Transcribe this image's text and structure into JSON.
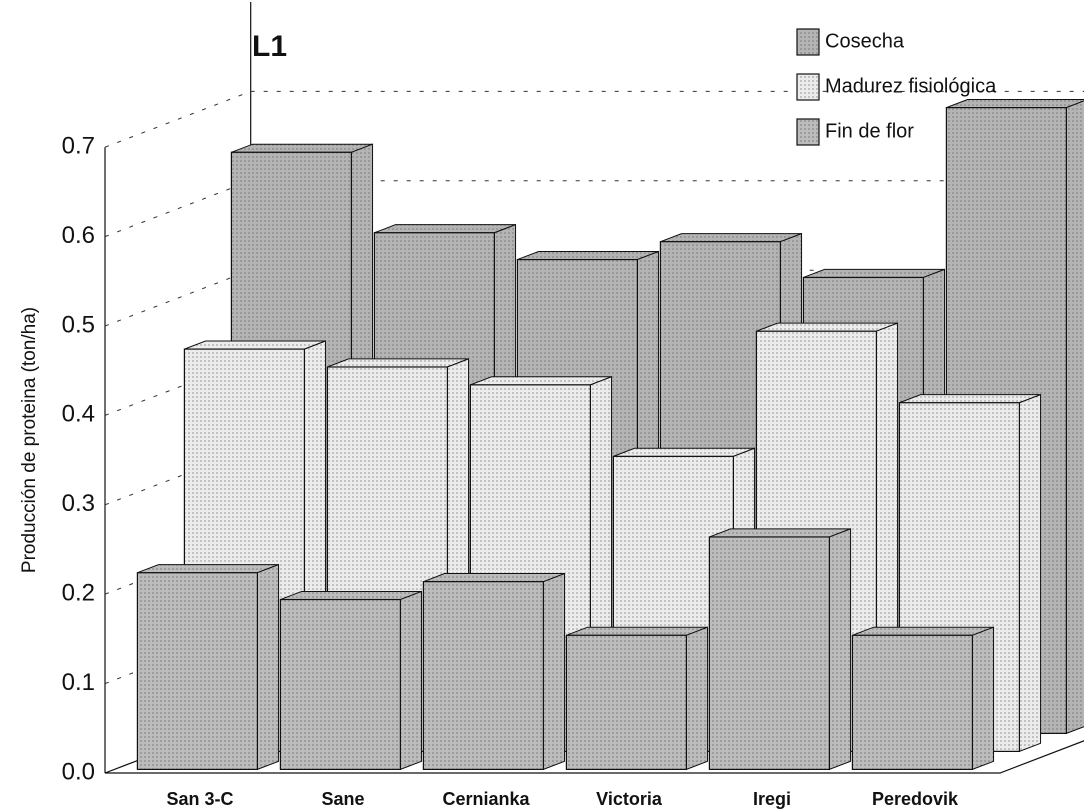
{
  "chart_data": {
    "type": "bar3d",
    "title": "L1",
    "y_label": "Producción de proteina (ton/ha)",
    "categories": [
      "San 3-C",
      "Sane",
      "Cernianka",
      "Victoria",
      "Iregi",
      "Peredovik"
    ],
    "series": [
      {
        "name": "Cosecha",
        "color": "#b4b4b4",
        "values": [
          0.65,
          0.56,
          0.53,
          0.55,
          0.51,
          0.7
        ]
      },
      {
        "name": "Madurez fisiológica",
        "color": "#ececec",
        "values": [
          0.45,
          0.43,
          0.41,
          0.33,
          0.47,
          0.39
        ]
      },
      {
        "name": "Fin de flor",
        "color": "#bcbcbc",
        "values": [
          0.22,
          0.19,
          0.21,
          0.15,
          0.26,
          0.15
        ]
      }
    ],
    "ylim": [
      0,
      0.8
    ],
    "yticks": [
      {
        "value": 0,
        "label": "0.0"
      },
      0.1,
      0.2,
      0.3,
      0.4,
      0.5,
      0.6,
      0.7
    ],
    "grid": true
  }
}
